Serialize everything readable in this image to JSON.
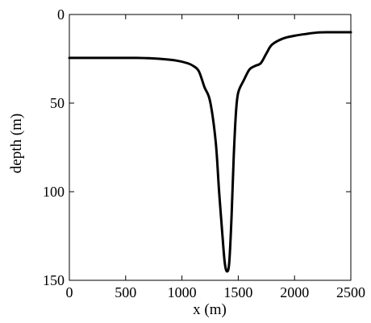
{
  "chart_data": {
    "type": "line",
    "title": "",
    "xlabel": "x (m)",
    "ylabel": "depth (m)",
    "xlim": [
      0,
      2500
    ],
    "ylim": [
      0,
      150
    ],
    "y_inverted": true,
    "grid": false,
    "x_ticks": [
      0,
      500,
      1000,
      1500,
      2000,
      2500
    ],
    "y_ticks": [
      0,
      50,
      100,
      150
    ],
    "series": [
      {
        "color": "#000000",
        "x": [
          0,
          200,
          400,
          600,
          800,
          950,
          1050,
          1100,
          1150,
          1200,
          1250,
          1300,
          1330,
          1360,
          1380,
          1400,
          1420,
          1440,
          1460,
          1480,
          1500,
          1550,
          1600,
          1650,
          1700,
          1750,
          1800,
          1900,
          2000,
          2100,
          2200,
          2300,
          2400,
          2500
        ],
        "y": [
          24.5,
          24.5,
          24.5,
          24.5,
          25,
          26,
          27.5,
          29,
          32,
          41,
          49,
          72,
          100,
          125,
          140,
          145,
          140,
          115,
          80,
          55,
          44,
          37,
          31,
          29,
          27.5,
          22,
          17,
          13.5,
          12,
          11,
          10.2,
          10,
          10,
          10
        ]
      }
    ]
  }
}
